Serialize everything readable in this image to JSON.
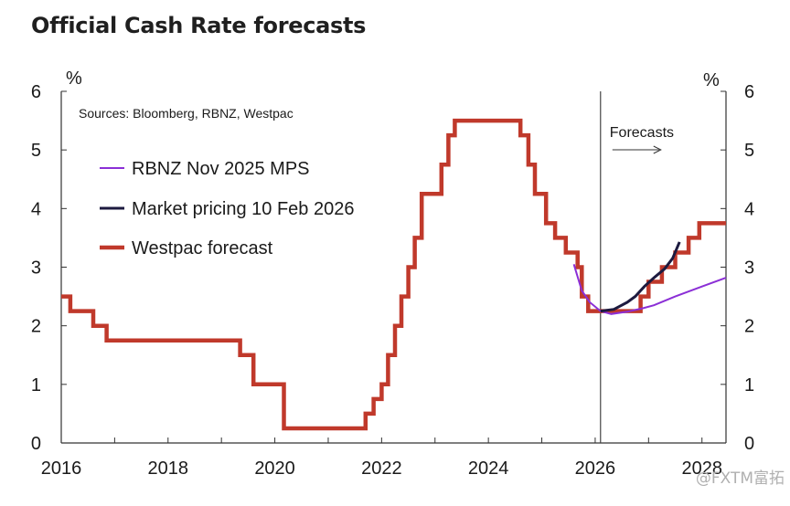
{
  "title": "Official Cash Rate forecasts",
  "watermark": "@FXTM富拓",
  "chart_data": {
    "type": "line",
    "title": "Official Cash Rate forecasts",
    "source": "Sources: Bloomberg, RBNZ, Westpac",
    "ylabel_left": "%",
    "ylabel_right": "%",
    "xlim": [
      2016,
      2028.45
    ],
    "ylim": [
      0,
      6
    ],
    "x_ticks": [
      2016,
      2018,
      2020,
      2022,
      2024,
      2026,
      2028
    ],
    "y_ticks": [
      0,
      1,
      2,
      3,
      4,
      5,
      6
    ],
    "forecast_start": 2026.1,
    "forecast_label": "Forecasts",
    "legend": [
      "RBNZ Nov 2025 MPS",
      "Market pricing 10 Feb 2026",
      "Westpac forecast"
    ],
    "series": [
      {
        "name": "Westpac forecast",
        "color": "#c0392b",
        "step": true,
        "points": [
          [
            2016.0,
            2.5
          ],
          [
            2016.17,
            2.25
          ],
          [
            2016.6,
            2.0
          ],
          [
            2016.85,
            1.75
          ],
          [
            2019.35,
            1.5
          ],
          [
            2019.6,
            1.0
          ],
          [
            2020.17,
            0.25
          ],
          [
            2021.7,
            0.5
          ],
          [
            2021.85,
            0.75
          ],
          [
            2022.0,
            1.0
          ],
          [
            2022.12,
            1.5
          ],
          [
            2022.25,
            2.0
          ],
          [
            2022.37,
            2.5
          ],
          [
            2022.5,
            3.0
          ],
          [
            2022.62,
            3.5
          ],
          [
            2022.75,
            4.25
          ],
          [
            2023.12,
            4.75
          ],
          [
            2023.25,
            5.25
          ],
          [
            2023.37,
            5.5
          ],
          [
            2024.6,
            5.25
          ],
          [
            2024.75,
            4.75
          ],
          [
            2024.87,
            4.25
          ],
          [
            2025.08,
            3.75
          ],
          [
            2025.25,
            3.5
          ],
          [
            2025.45,
            3.25
          ],
          [
            2025.67,
            3.0
          ],
          [
            2025.75,
            2.5
          ],
          [
            2025.87,
            2.25
          ],
          [
            2026.85,
            2.5
          ],
          [
            2027.0,
            2.75
          ],
          [
            2027.25,
            3.0
          ],
          [
            2027.5,
            3.25
          ],
          [
            2027.75,
            3.5
          ],
          [
            2027.95,
            3.75
          ],
          [
            2028.45,
            3.75
          ]
        ]
      },
      {
        "name": "RBNZ Nov 2025 MPS",
        "color": "#8b2fd6",
        "step": false,
        "points": [
          [
            2025.6,
            3.05
          ],
          [
            2025.75,
            2.6
          ],
          [
            2025.9,
            2.4
          ],
          [
            2026.1,
            2.25
          ],
          [
            2026.3,
            2.2
          ],
          [
            2026.6,
            2.24
          ],
          [
            2026.9,
            2.3
          ],
          [
            2027.1,
            2.35
          ],
          [
            2027.5,
            2.5
          ],
          [
            2028.0,
            2.67
          ],
          [
            2028.45,
            2.82
          ]
        ]
      },
      {
        "name": "Market pricing 10 Feb 2026",
        "color": "#1c1a3f",
        "step": false,
        "points": [
          [
            2026.1,
            2.25
          ],
          [
            2026.35,
            2.28
          ],
          [
            2026.6,
            2.4
          ],
          [
            2026.75,
            2.5
          ],
          [
            2026.92,
            2.67
          ],
          [
            2027.1,
            2.82
          ],
          [
            2027.3,
            2.97
          ],
          [
            2027.45,
            3.15
          ],
          [
            2027.58,
            3.43
          ]
        ]
      }
    ]
  }
}
